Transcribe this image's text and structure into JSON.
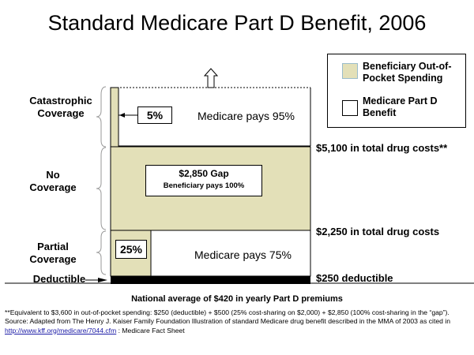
{
  "title": "Standard Medicare Part D Benefit, 2006",
  "segments": {
    "catastrophic": "Catastrophic\nCoverage",
    "no_coverage": "No\nCoverage",
    "partial": "Partial\nCoverage",
    "deductible": "Deductible"
  },
  "thresholds": {
    "t5100": "$5,100 in total drug costs**",
    "t2250": "$2,250 in total drug costs",
    "t250": "$250 deductible"
  },
  "boxes": {
    "catastrophic_pct": "5%",
    "catastrophic_text": "Medicare pays 95%",
    "gap_title": "$2,850 Gap",
    "gap_sub": "Beneficiary pays 100%",
    "partial_pct": "25%",
    "partial_text": "Medicare pays 75%"
  },
  "legend": {
    "oop_label": "Beneficiary Out-of-Pocket Spending",
    "benefit_label": "Medicare Part D Benefit"
  },
  "premiums": "National average of $420 in yearly Part D premiums",
  "footnote": {
    "equivalent": "**Equivalent to $3,600 in out-of-pocket spending: $250 (deductible) + $500 (25% cost-sharing on $2,000) + $2,850 (100% cost-sharing in the “gap”).",
    "source_prefix": "Source: Adapted from The Henry J. Kaiser Family Foundation Illustration of standard Medicare drug benefit described in the MMA of 2003 as cited in",
    "source_link": "http://www.kff.org/medicare/7044.cfm",
    "source_suffix": ": Medicare Fact Sheet"
  },
  "colors": {
    "out_of_pocket": "#e3e0b8",
    "medicare_benefit": "#ffffff",
    "deductible_bar": "#000000"
  }
}
